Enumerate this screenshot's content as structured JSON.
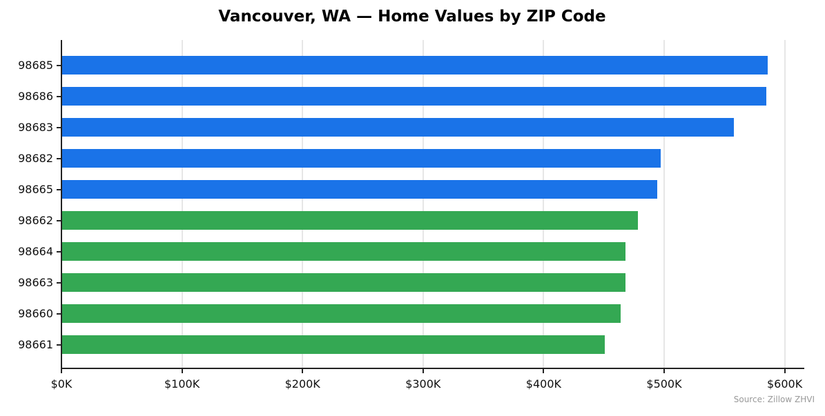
{
  "chart_data": {
    "type": "bar",
    "orientation": "horizontal",
    "title": "Vancouver, WA — Home Values by ZIP Code",
    "xlabel": "",
    "ylabel": "",
    "xlim": [
      0,
      615000
    ],
    "grid": {
      "x": true,
      "y": false
    },
    "categories": [
      "98685",
      "98686",
      "98683",
      "98682",
      "98665",
      "98662",
      "98664",
      "98663",
      "98660",
      "98661"
    ],
    "values": [
      586000,
      585000,
      558000,
      497000,
      494000,
      478000,
      468000,
      468000,
      464000,
      451000
    ],
    "colors": [
      "#1a73e8",
      "#1a73e8",
      "#1a73e8",
      "#1a73e8",
      "#1a73e8",
      "#34a853",
      "#34a853",
      "#34a853",
      "#34a853",
      "#34a853"
    ],
    "x_ticks": [
      0,
      100000,
      200000,
      300000,
      400000,
      500000,
      600000
    ],
    "x_tick_labels": [
      "$0K",
      "$100K",
      "$200K",
      "$300K",
      "$400K",
      "$500K",
      "$600K"
    ],
    "annotation": "Source: Zillow ZHVI"
  },
  "title": "Vancouver, WA — Home Values by ZIP Code",
  "source": "Source: Zillow ZHVI",
  "colors": {
    "top": "#1a73e8",
    "rest": "#34a853"
  }
}
